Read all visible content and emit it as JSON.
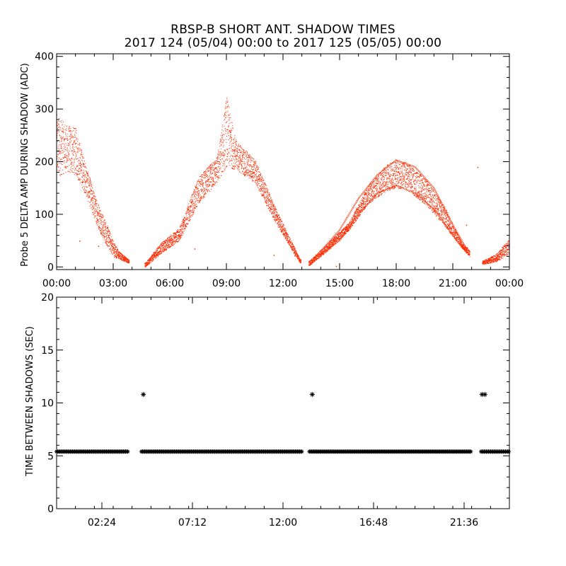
{
  "title": {
    "line1": "RBSP-B SHORT ANT. SHADOW TIMES",
    "line2": "2017 124 (05/04) 00:00 to 2017 125 (05/05) 00:00"
  },
  "colors": {
    "delta_amp": "#ff2a00",
    "time_between": "#000000",
    "axes": "#000000"
  },
  "chart_data": [
    {
      "type": "scatter",
      "ylabel": "Probe 5 DELTA AMP DURING SHADOW (ADC)",
      "xlim_hours": [
        0,
        24
      ],
      "ylim": [
        -5,
        405
      ],
      "yticks": [
        0,
        100,
        200,
        300,
        400
      ],
      "xtick_labels": [
        "00:00",
        "03:00",
        "06:00",
        "09:00",
        "12:00",
        "15:00",
        "18:00",
        "21:00",
        "00:00"
      ],
      "xtick_hours": [
        0,
        3,
        6,
        9,
        12,
        15,
        18,
        21,
        24
      ],
      "grid": false,
      "envelope": {
        "x_hours": [
          0.0,
          0.5,
          1.0,
          1.5,
          2.0,
          2.5,
          3.0,
          3.3,
          3.8,
          4.7,
          5.5,
          6.5,
          7.5,
          8.5,
          9.0,
          9.5,
          10.5,
          11.5,
          12.5,
          12.9,
          13.4,
          14.5,
          15.5,
          16.5,
          17.5,
          18.0,
          18.5,
          19.5,
          20.5,
          21.5,
          22.0,
          22.6,
          23.3,
          24.0
        ],
        "upper": [
          290,
          270,
          265,
          200,
          140,
          95,
          50,
          30,
          15,
          8,
          45,
          75,
          170,
          210,
          325,
          240,
          205,
          120,
          45,
          15,
          12,
          50,
          85,
          155,
          195,
          203,
          200,
          170,
          120,
          45,
          30,
          12,
          25,
          55
        ],
        "lower": [
          170,
          180,
          175,
          140,
          90,
          50,
          20,
          15,
          8,
          0,
          25,
          50,
          120,
          160,
          190,
          185,
          160,
          90,
          30,
          8,
          3,
          35,
          70,
          120,
          145,
          150,
          148,
          120,
          80,
          35,
          15,
          5,
          10,
          25
        ]
      },
      "upper_band_line": {
        "x_hours": [
          14.0,
          15.0,
          16.0,
          17.0,
          18.0,
          19.0,
          20.0,
          21.0,
          21.8
        ],
        "values": [
          30,
          70,
          130,
          175,
          203,
          190,
          150,
          80,
          30
        ]
      },
      "lower_band_line": {
        "x_hours": [
          14.0,
          15.0,
          16.0,
          17.0,
          18.0,
          19.0,
          20.0,
          21.0,
          21.8
        ],
        "values": [
          25,
          50,
          100,
          140,
          155,
          140,
          110,
          60,
          25
        ]
      },
      "outliers": [
        {
          "x": 1.2,
          "y": 50
        },
        {
          "x": 2.2,
          "y": 40
        },
        {
          "x": 7.3,
          "y": 35
        },
        {
          "x": 11.5,
          "y": 23
        },
        {
          "x": 12.6,
          "y": 22
        },
        {
          "x": 22.3,
          "y": 190
        },
        {
          "x": 21.7,
          "y": 80
        },
        {
          "x": 14.8,
          "y": 2
        },
        {
          "x": 8.9,
          "y": 222
        }
      ]
    },
    {
      "type": "scatter",
      "ylabel": "TIME BETWEEN SHADOWS (SEC)",
      "xlim_hours": [
        0,
        24
      ],
      "ylim": [
        0,
        20
      ],
      "yticks": [
        0,
        5,
        10,
        15,
        20
      ],
      "xtick_labels": [
        "02:24",
        "07:12",
        "12:00",
        "16:48",
        "21:36"
      ],
      "xtick_hours": [
        2.4,
        7.2,
        12.0,
        16.8,
        21.6
      ],
      "grid": false,
      "marker": "asterisk",
      "baseline_segments": [
        {
          "start_hour": 0.0,
          "end_hour": 3.8,
          "value": 5.4
        },
        {
          "start_hour": 4.5,
          "end_hour": 13.0,
          "value": 5.4
        },
        {
          "start_hour": 13.4,
          "end_hour": 22.0,
          "value": 5.4
        },
        {
          "start_hour": 22.5,
          "end_hour": 24.0,
          "value": 5.4
        }
      ],
      "points": [
        {
          "x": 4.6,
          "y": 10.8
        },
        {
          "x": 13.55,
          "y": 10.8
        },
        {
          "x": 22.55,
          "y": 10.8
        },
        {
          "x": 22.7,
          "y": 10.8
        }
      ]
    }
  ]
}
